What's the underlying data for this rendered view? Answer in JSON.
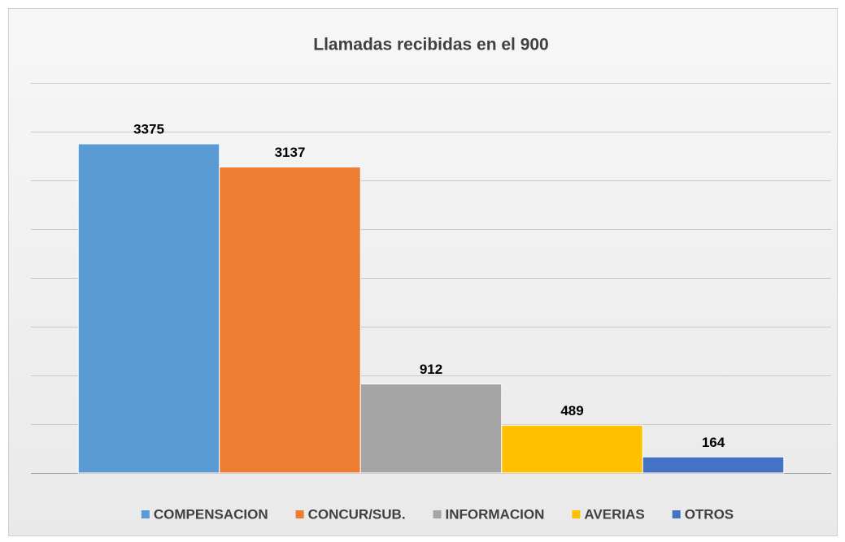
{
  "chart_data": {
    "type": "bar",
    "title": "Llamadas recibidas en el 900",
    "categories": [
      null
    ],
    "series": [
      {
        "name": "COMPENSACION",
        "color": "#5b9bd5",
        "values": [
          3375
        ]
      },
      {
        "name": "CONCUR/SUB.",
        "color": "#ed7d31",
        "values": [
          3137
        ]
      },
      {
        "name": "INFORMACION",
        "color": "#a5a5a5",
        "values": [
          912
        ]
      },
      {
        "name": "AVERIAS",
        "color": "#ffc000",
        "values": [
          489
        ]
      },
      {
        "name": "OTROS",
        "color": "#4472c4",
        "values": [
          164
        ]
      }
    ],
    "ylim": [
      0,
      4000
    ],
    "yticks": [
      0,
      500,
      1000,
      1500,
      2000,
      2500,
      3000,
      3500,
      4000
    ],
    "grid": true,
    "legend": "bottom"
  }
}
